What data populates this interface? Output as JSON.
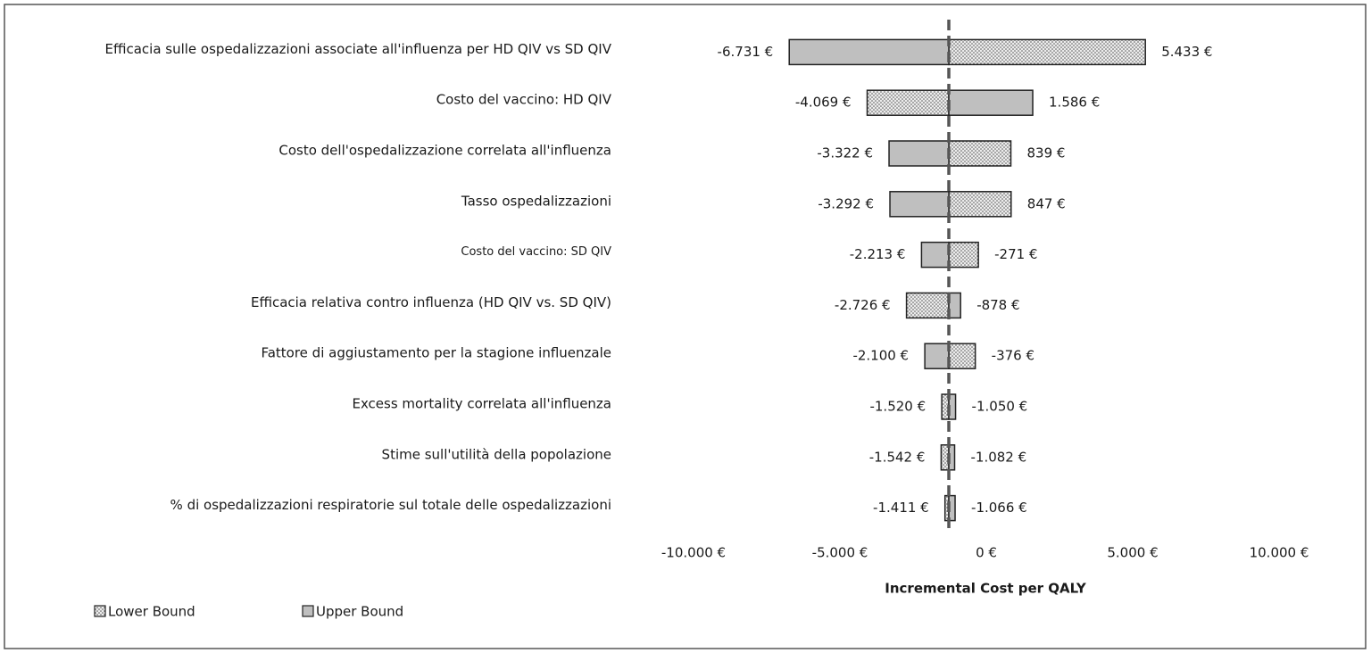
{
  "chart_data": {
    "type": "tornado",
    "axis_label": "Incremental Cost per QALY",
    "categories": [
      "Efficacia sulle ospedalizzazioni associate all'influenza per HD QIV vs SD QIV",
      "Costo del vaccino: HD QIV",
      "Costo dell'ospedalizzazione correlata all'influenza",
      "Tasso ospedalizzazioni",
      "Costo del vaccino: SD QIV",
      "Efficacia relativa contro influenza (HD QIV vs. SD QIV)",
      "Fattore di aggiustamento per la stagione influenzale",
      "Excess mortality correlata all'influenza",
      "Stime sull'utilità della popolazione",
      "% di ospedalizzazioni respiratorie sul totale delle ospedalizzazioni"
    ],
    "base": -1280,
    "series": [
      {
        "name": "Lower Bound",
        "color": "#e6e6e6",
        "pattern": "dots",
        "values": [
          5433,
          -4069,
          839,
          847,
          -271,
          -2726,
          -376,
          -1520,
          -1542,
          -1411
        ],
        "value_labels": [
          "5.433 €",
          "-4.069 €",
          "839 €",
          "847 €",
          "-271 €",
          "-2.726 €",
          "-376 €",
          "-1.520 €",
          "-1.542 €",
          "-1.411 €"
        ]
      },
      {
        "name": "Upper Bound",
        "color": "#bfbfbf",
        "values": [
          -6731,
          1586,
          -3322,
          -3292,
          -2213,
          -878,
          -2100,
          -1050,
          -1082,
          -1066
        ],
        "value_labels": [
          "-6.731 €",
          "1.586 €",
          "-3.322 €",
          "-3.292 €",
          "-2.213 €",
          "-878 €",
          "-2.100 €",
          "-1.050 €",
          "-1.082 €",
          "-1.066 €"
        ]
      }
    ],
    "xlim": [
      -10000,
      10000
    ],
    "xticks": [
      {
        "value": -10000,
        "label": "-10.000 €"
      },
      {
        "value": -5000,
        "label": "-5.000 €"
      },
      {
        "value": 0,
        "label": "0 €"
      },
      {
        "value": 5000,
        "label": "5.000 €"
      },
      {
        "value": 10000,
        "label": "10.000 €"
      }
    ],
    "legend": "bottom-left"
  }
}
